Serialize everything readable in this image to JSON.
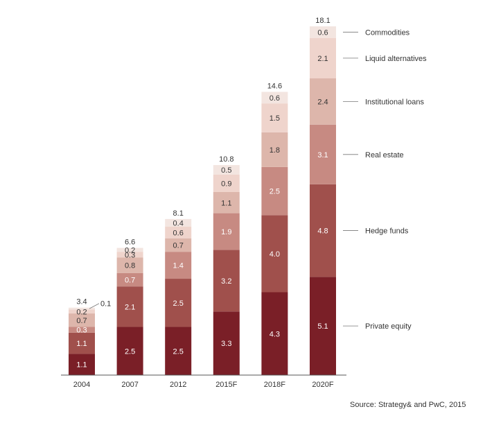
{
  "chart_data": {
    "type": "bar",
    "stacked": true,
    "categories": [
      "2004",
      "2007",
      "2012",
      "2015F",
      "2018F",
      "2020F"
    ],
    "totals": [
      "3.4",
      "6.6",
      "8.1",
      "10.8",
      "14.6",
      "18.1"
    ],
    "series": [
      {
        "name": "Private equity",
        "color": "#7a1f27",
        "labelColor": "#ffffff",
        "values": [
          1.1,
          2.5,
          2.5,
          3.3,
          4.3,
          5.1
        ]
      },
      {
        "name": "Hedge funds",
        "color": "#a0504c",
        "labelColor": "#ffffff",
        "values": [
          1.1,
          2.1,
          2.5,
          3.2,
          4.0,
          4.8
        ]
      },
      {
        "name": "Real estate",
        "color": "#c78a82",
        "labelColor": "#ffffff",
        "values": [
          0.3,
          0.7,
          1.4,
          1.9,
          2.5,
          3.1
        ]
      },
      {
        "name": "Institutional loans",
        "color": "#ddb6ab",
        "labelColor": "#333333",
        "values": [
          0.7,
          0.8,
          0.7,
          1.1,
          1.8,
          2.4
        ]
      },
      {
        "name": "Liquid alternatives",
        "color": "#efd4cc",
        "labelColor": "#333333",
        "values": [
          0.2,
          0.3,
          0.6,
          0.9,
          1.5,
          2.1
        ]
      },
      {
        "name": "Commodities",
        "color": "#f3e5e0",
        "labelColor": "#333333",
        "values": [
          0.1,
          0.2,
          0.4,
          0.5,
          0.6,
          0.6
        ]
      }
    ],
    "ylim": [
      0,
      18.1
    ],
    "legend_position": "right"
  },
  "source_text": "Source: Strategy& and PwC, 2015"
}
